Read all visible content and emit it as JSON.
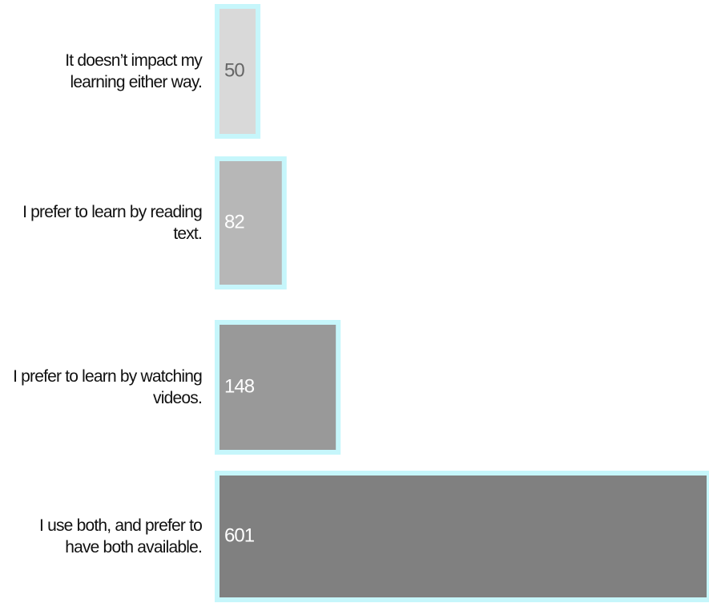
{
  "chart_data": {
    "type": "bar",
    "orientation": "horizontal",
    "categories": [
      "It doesn’t impact my learning either way.",
      "I prefer to learn by reading text.",
      "I prefer to learn by watching videos.",
      "I use both, and prefer to have both available."
    ],
    "values": [
      50,
      82,
      148,
      601
    ],
    "colors": [
      "#d9d9d9",
      "#b7b7b7",
      "#999999",
      "#808080"
    ],
    "border_color": "#c6f6fb",
    "label_colors": [
      "#666666",
      "#ffffff",
      "#ffffff",
      "#ffffff"
    ]
  }
}
